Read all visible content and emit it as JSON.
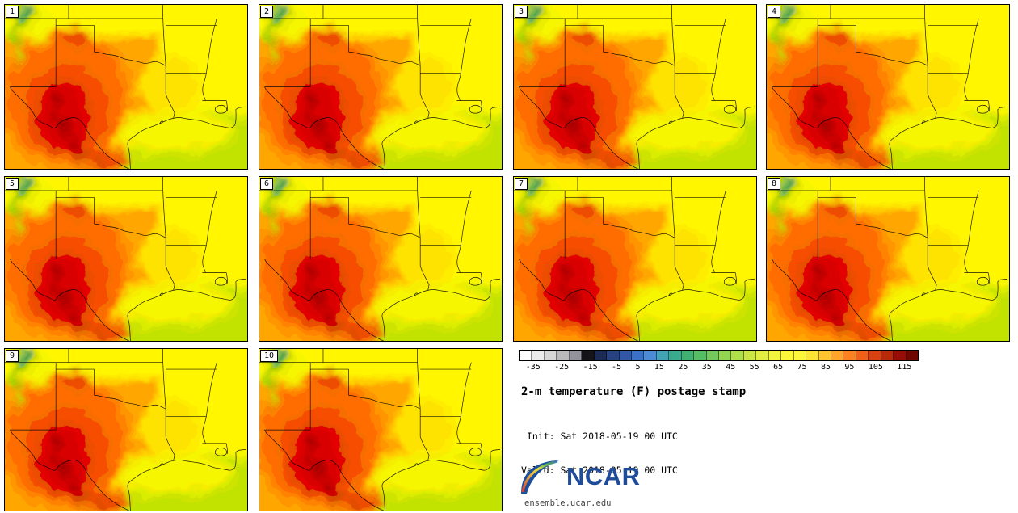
{
  "page": {
    "background": "#ffffff"
  },
  "panels": {
    "labels": [
      "1",
      "2",
      "3",
      "4",
      "5",
      "6",
      "7",
      "8",
      "9",
      "10"
    ]
  },
  "colorbar": {
    "ticks": [
      "-35",
      "-25",
      "-15",
      "-5",
      "5",
      "15",
      "25",
      "35",
      "45",
      "55",
      "65",
      "75",
      "85",
      "95",
      "105",
      "115"
    ],
    "colors": [
      "#fefefe",
      "#ebebeb",
      "#d6d6d6",
      "#b9b9bc",
      "#93949b",
      "#131318",
      "#1c2b56",
      "#274181",
      "#3058a7",
      "#3a70c5",
      "#4b8bd3",
      "#42a4b4",
      "#3aaa8d",
      "#42b272",
      "#57bd64",
      "#73c95b",
      "#93d453",
      "#b1de4b",
      "#cce745",
      "#e1ee41",
      "#f2f43e",
      "#fdf73b",
      "#fff539",
      "#ffe335",
      "#ffc42f",
      "#ffa329",
      "#fb8121",
      "#ef6019",
      "#d94210",
      "#ba2909",
      "#960e03",
      "#6f0600"
    ]
  },
  "caption": {
    "title": "2-m temperature (F) postage stamp",
    "init_line": " Init: Sat 2018-05-19 00 UTC",
    "valid_line": "Valid: Sat 2018-05-19 00 UTC"
  },
  "branding": {
    "logo_text": "NCAR",
    "site_url": "ensemble.ucar.edu",
    "logo_color": "#1f4c9b"
  }
}
